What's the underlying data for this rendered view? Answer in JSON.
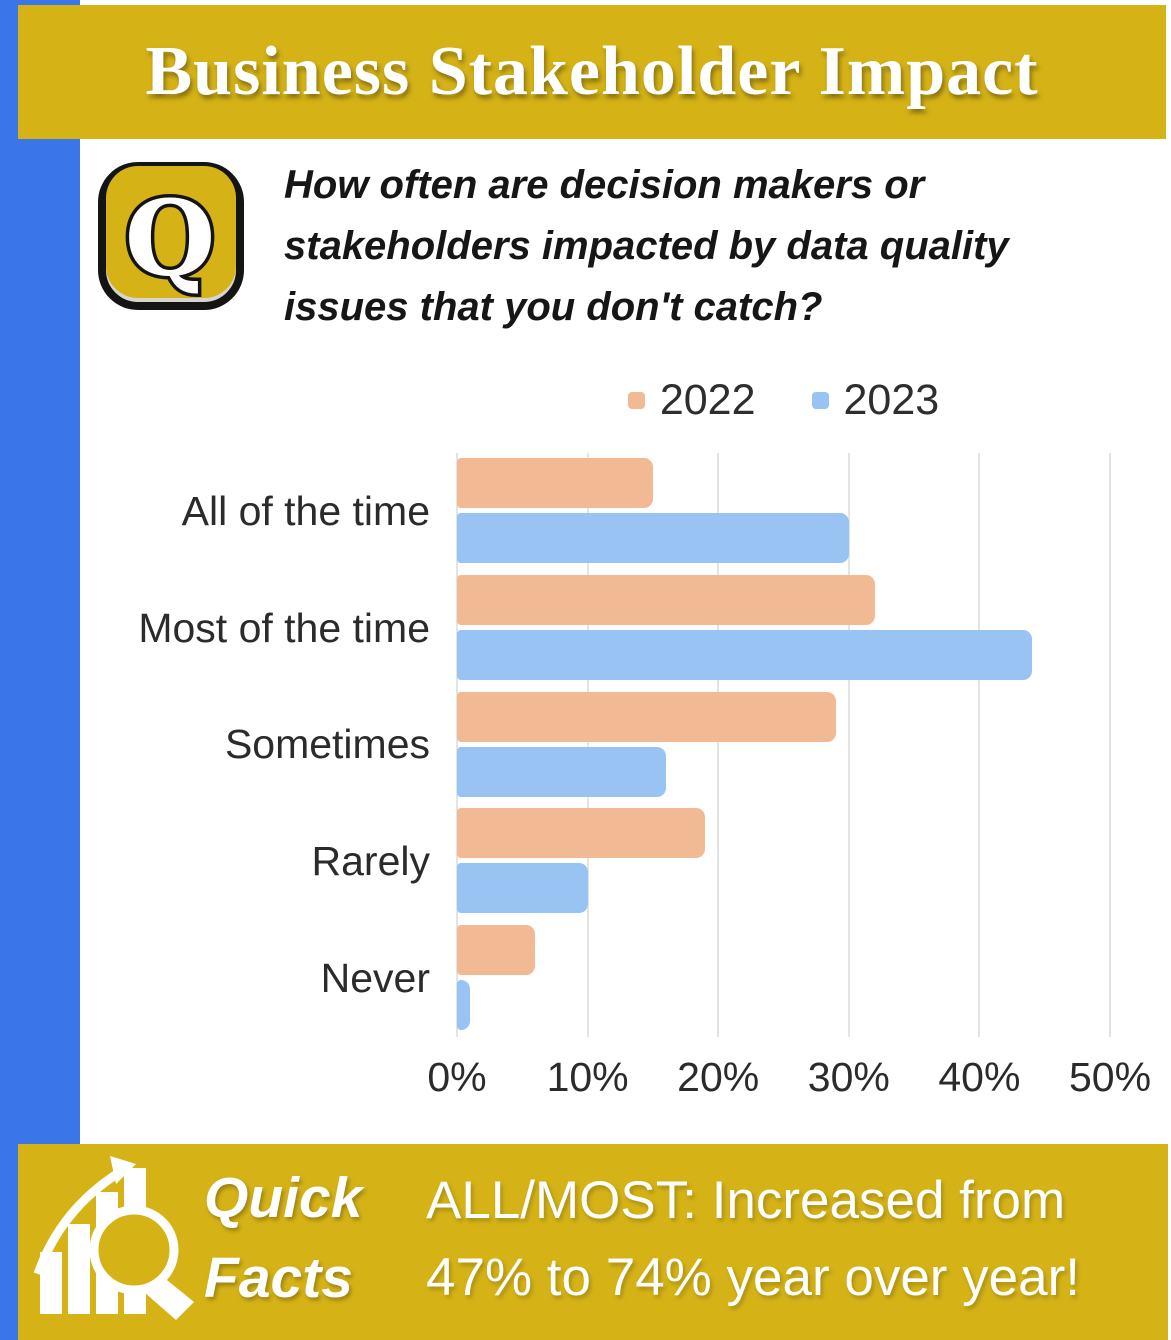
{
  "header": {
    "title": "Business Stakeholder Impact"
  },
  "question": {
    "icon": "q-badge-icon",
    "text": "How often are decision makers or stakeholders impacted by data quality issues that you don't catch?"
  },
  "chart_data": {
    "type": "bar",
    "orientation": "horizontal",
    "title": "",
    "categories": [
      "All of the time",
      "Most of the time",
      "Sometimes",
      "Rarely",
      "Never"
    ],
    "series": [
      {
        "name": "2022",
        "color": "#f2ba94",
        "values": [
          15,
          32,
          29,
          19,
          6
        ]
      },
      {
        "name": "2023",
        "color": "#98c3f2",
        "values": [
          30,
          44,
          16,
          10,
          1
        ]
      }
    ],
    "x_ticks": [
      "0%",
      "10%",
      "20%",
      "30%",
      "40%",
      "50%"
    ],
    "xlim": [
      0,
      50
    ],
    "grid": true,
    "legend_position": "top"
  },
  "footer": {
    "icon": "chart-magnifier-icon",
    "quick_facts_line1": "Quick",
    "quick_facts_line2": "Facts",
    "fact": "ALL/MOST: Increased from 47% to 74% year over year!"
  },
  "colors": {
    "band_yellow": "#d5b317",
    "strip_blue": "#3b76e8",
    "bar_2022": "#f2ba94",
    "bar_2023": "#98c3f2",
    "gridline": "#e4e4e4"
  }
}
